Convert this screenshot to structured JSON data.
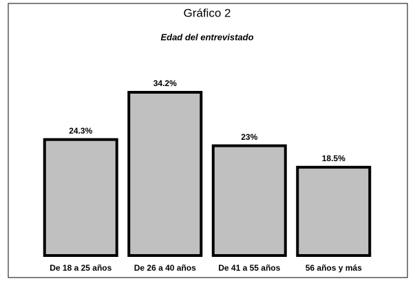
{
  "chart_data": {
    "type": "bar",
    "title": "Gráfico 2",
    "subtitle": "Edad del entrevistado",
    "categories": [
      "De 18 a 25 años",
      "De 26 a 40 años",
      "De 41 a 55 años",
      "56 años y más"
    ],
    "values": [
      24.3,
      34.2,
      23,
      18.5
    ],
    "value_labels": [
      "24.3%",
      "34.2%",
      "23%",
      "18.5%"
    ],
    "color": "#c0c0c0"
  }
}
